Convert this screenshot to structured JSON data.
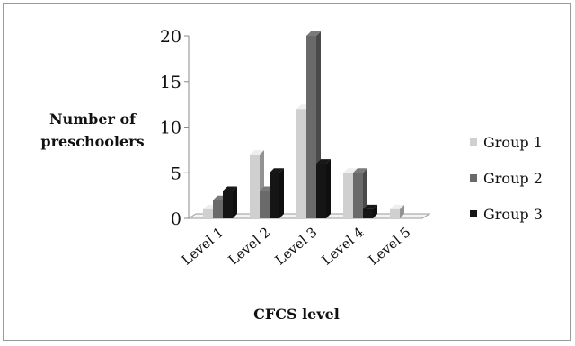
{
  "chart_data": {
    "type": "bar",
    "title": "",
    "xlabel": "CFCS level",
    "ylabel": "Number of preschoolers",
    "ylabel_lines": [
      "Number of",
      "preschoolers"
    ],
    "categories": [
      "Level 1",
      "Level 2",
      "Level 3",
      "Level 4",
      "Level 5"
    ],
    "series": [
      {
        "name": "Group 1",
        "values": [
          1,
          7,
          12,
          5,
          1
        ],
        "color": "#d0d0d0"
      },
      {
        "name": "Group 2",
        "values": [
          2,
          3,
          20,
          5,
          0
        ],
        "color": "#6a6a6a"
      },
      {
        "name": "Group 3",
        "values": [
          3,
          5,
          6,
          1,
          0
        ],
        "color": "#151515"
      }
    ],
    "ylim": [
      0,
      20
    ],
    "yticks": [
      0,
      5,
      10,
      15,
      20
    ],
    "grid": false,
    "legend_position": "right",
    "style": "3d-column"
  }
}
